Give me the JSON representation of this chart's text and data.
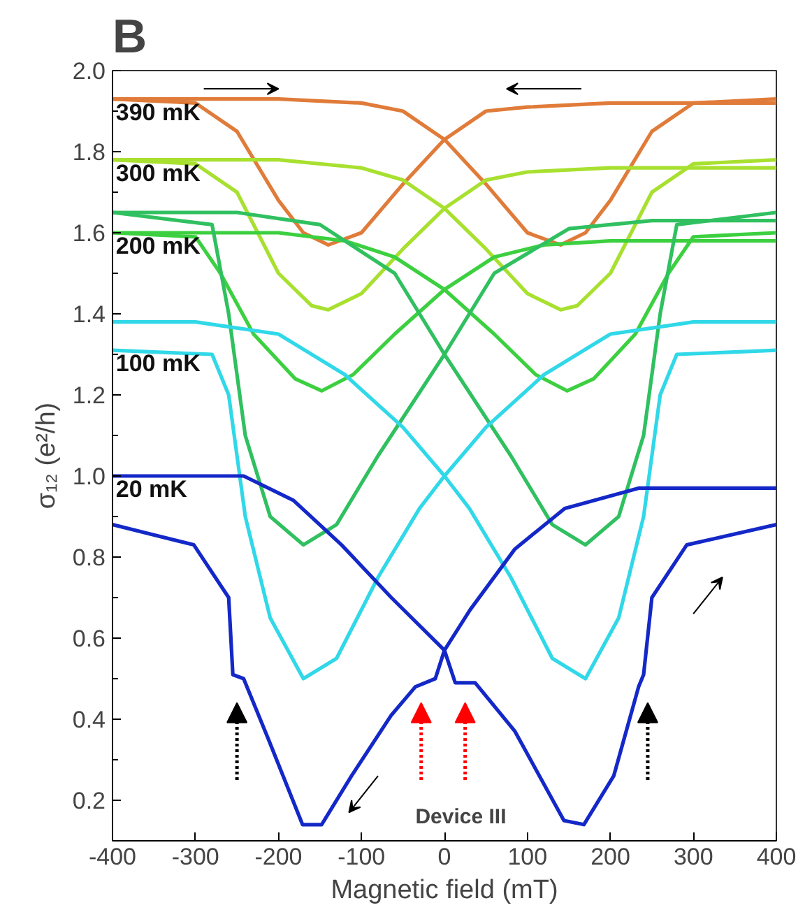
{
  "chart_data": {
    "type": "line",
    "title": "B",
    "xlabel": "Magnetic field (mT)",
    "ylabel": "σ₁₂ (e²/h)",
    "xlim": [
      -400,
      400
    ],
    "ylim": [
      0.1,
      2.0
    ],
    "xticks": [
      -400,
      -300,
      -200,
      -100,
      0,
      100,
      200,
      300,
      400
    ],
    "yticks": [
      0.2,
      0.4,
      0.6,
      0.8,
      {
        "value": 1,
        "label": "1.0"
      },
      1.2,
      1.4,
      1.6,
      1.8,
      {
        "value": 2,
        "label": "2.0"
      }
    ],
    "grid": false,
    "marker": "none",
    "line_style": "solid",
    "annotations": [
      "Device III"
    ],
    "series": [
      {
        "name": "390 mK",
        "color": "#e07b39",
        "x": [
          -400,
          -300,
          -250,
          -200,
          -170,
          -140,
          -100,
          -50,
          0,
          50,
          100,
          200,
          400
        ],
        "values": [
          1.93,
          1.92,
          1.85,
          1.68,
          1.6,
          1.57,
          1.6,
          1.72,
          1.83,
          1.9,
          1.91,
          1.92,
          1.92
        ]
      },
      {
        "color": "#e07b39",
        "x": [
          -400,
          -200,
          -100,
          -50,
          0,
          50,
          100,
          140,
          170,
          200,
          250,
          300,
          400
        ],
        "values": [
          1.93,
          1.93,
          1.92,
          1.9,
          1.83,
          1.72,
          1.6,
          1.57,
          1.6,
          1.68,
          1.85,
          1.92,
          1.93
        ]
      },
      {
        "name": "300 mK",
        "color": "#a8e030",
        "x": [
          -400,
          -300,
          -250,
          -200,
          -160,
          -140,
          -100,
          -50,
          0,
          50,
          100,
          200,
          400
        ],
        "values": [
          1.78,
          1.77,
          1.7,
          1.5,
          1.42,
          1.41,
          1.45,
          1.56,
          1.66,
          1.73,
          1.75,
          1.76,
          1.76
        ]
      },
      {
        "color": "#a8e030",
        "x": [
          -400,
          -200,
          -100,
          -50,
          0,
          50,
          100,
          140,
          160,
          200,
          250,
          300,
          400
        ],
        "values": [
          1.78,
          1.78,
          1.76,
          1.73,
          1.66,
          1.56,
          1.45,
          1.41,
          1.42,
          1.5,
          1.7,
          1.77,
          1.78
        ]
      },
      {
        "name": "200 mK",
        "color": "#3cd040",
        "x": [
          -400,
          -300,
          -270,
          -230,
          -180,
          -148,
          -110,
          -60,
          0,
          60,
          120,
          200,
          400
        ],
        "values": [
          1.6,
          1.59,
          1.5,
          1.35,
          1.24,
          1.21,
          1.25,
          1.35,
          1.46,
          1.54,
          1.57,
          1.58,
          1.58
        ]
      },
      {
        "color": "#3cd040",
        "x": [
          -400,
          -200,
          -120,
          -60,
          0,
          60,
          110,
          148,
          180,
          230,
          270,
          300,
          400
        ],
        "values": [
          1.6,
          1.6,
          1.58,
          1.54,
          1.46,
          1.35,
          1.25,
          1.21,
          1.24,
          1.35,
          1.5,
          1.59,
          1.6
        ]
      },
      {
        "color": "#30c060",
        "x": [
          -400,
          -280,
          -260,
          -240,
          -210,
          -170,
          -130,
          -80,
          0,
          60,
          150,
          250,
          400
        ],
        "values": [
          1.65,
          1.62,
          1.4,
          1.1,
          0.9,
          0.83,
          0.88,
          1.05,
          1.3,
          1.5,
          1.61,
          1.63,
          1.63
        ]
      },
      {
        "color": "#30c060",
        "x": [
          -400,
          -250,
          -150,
          -60,
          0,
          80,
          130,
          170,
          210,
          240,
          260,
          280,
          400
        ],
        "values": [
          1.65,
          1.65,
          1.62,
          1.5,
          1.3,
          1.05,
          0.88,
          0.83,
          0.9,
          1.1,
          1.4,
          1.62,
          1.65
        ]
      },
      {
        "name": "100 mK",
        "color": "#30d8e8",
        "x": [
          -400,
          -280,
          -260,
          -240,
          -210,
          -170,
          -130,
          -80,
          -30,
          0,
          50,
          120,
          200,
          300,
          400
        ],
        "values": [
          1.31,
          1.3,
          1.2,
          0.9,
          0.65,
          0.5,
          0.55,
          0.75,
          0.92,
          1.0,
          1.12,
          1.25,
          1.35,
          1.38,
          1.38
        ]
      },
      {
        "color": "#30d8e8",
        "x": [
          -400,
          -300,
          -200,
          -120,
          -50,
          0,
          30,
          80,
          130,
          170,
          210,
          240,
          260,
          280,
          400
        ],
        "values": [
          1.38,
          1.38,
          1.35,
          1.25,
          1.12,
          1.0,
          0.92,
          0.75,
          0.55,
          0.5,
          0.65,
          0.9,
          1.2,
          1.3,
          1.31
        ]
      },
      {
        "color": "#1428c8",
        "x": [
          -400,
          -302,
          -260,
          -255,
          -242,
          -212,
          -171,
          -148,
          -112,
          -64,
          -35,
          -11,
          0,
          31,
          85,
          145,
          234,
          400
        ],
        "values": [
          0.88,
          0.83,
          0.7,
          0.51,
          0.5,
          0.35,
          0.14,
          0.14,
          0.26,
          0.41,
          0.48,
          0.5,
          0.57,
          0.67,
          0.82,
          0.92,
          0.97,
          0.97
        ]
      },
      {
        "name": "20 mK",
        "color": "#1428c8",
        "x": [
          -400,
          -242,
          -182,
          -124,
          -64,
          0,
          13,
          37,
          85,
          144,
          168,
          204,
          234,
          240,
          250,
          292,
          400
        ],
        "values": [
          1.0,
          1.0,
          0.94,
          0.83,
          0.7,
          0.57,
          0.49,
          0.49,
          0.37,
          0.15,
          0.14,
          0.26,
          0.48,
          0.51,
          0.7,
          0.83,
          0.88
        ]
      }
    ]
  }
}
